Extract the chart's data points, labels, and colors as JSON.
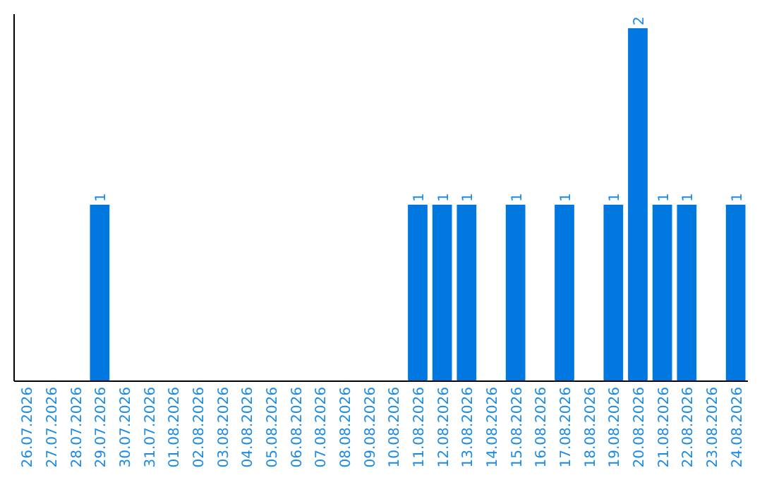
{
  "chart_data": {
    "type": "bar",
    "categories": [
      "26.07.2026",
      "27.07.2026",
      "28.07.2026",
      "29.07.2026",
      "30.07.2026",
      "31.07.2026",
      "01.08.2026",
      "02.08.2026",
      "03.08.2026",
      "04.08.2026",
      "05.08.2026",
      "06.08.2026",
      "07.08.2026",
      "08.08.2026",
      "09.08.2026",
      "10.08.2026",
      "11.08.2026",
      "12.08.2026",
      "13.08.2026",
      "14.08.2026",
      "15.08.2026",
      "16.08.2026",
      "17.08.2026",
      "18.08.2026",
      "19.08.2026",
      "20.08.2026",
      "21.08.2026",
      "22.08.2026",
      "23.08.2026",
      "24.08.2026"
    ],
    "values": [
      0,
      0,
      0,
      1,
      0,
      0,
      0,
      0,
      0,
      0,
      0,
      0,
      0,
      0,
      0,
      0,
      1,
      1,
      1,
      0,
      1,
      0,
      1,
      0,
      1,
      2,
      1,
      1,
      0,
      1
    ],
    "value_labels": [
      null,
      null,
      null,
      "1",
      null,
      null,
      null,
      null,
      null,
      null,
      null,
      null,
      null,
      null,
      null,
      null,
      "1",
      "1",
      "1",
      null,
      "1",
      null,
      "1",
      null,
      "1",
      "2",
      "1",
      "1",
      null,
      "1"
    ],
    "color": "#0078e0"
  }
}
